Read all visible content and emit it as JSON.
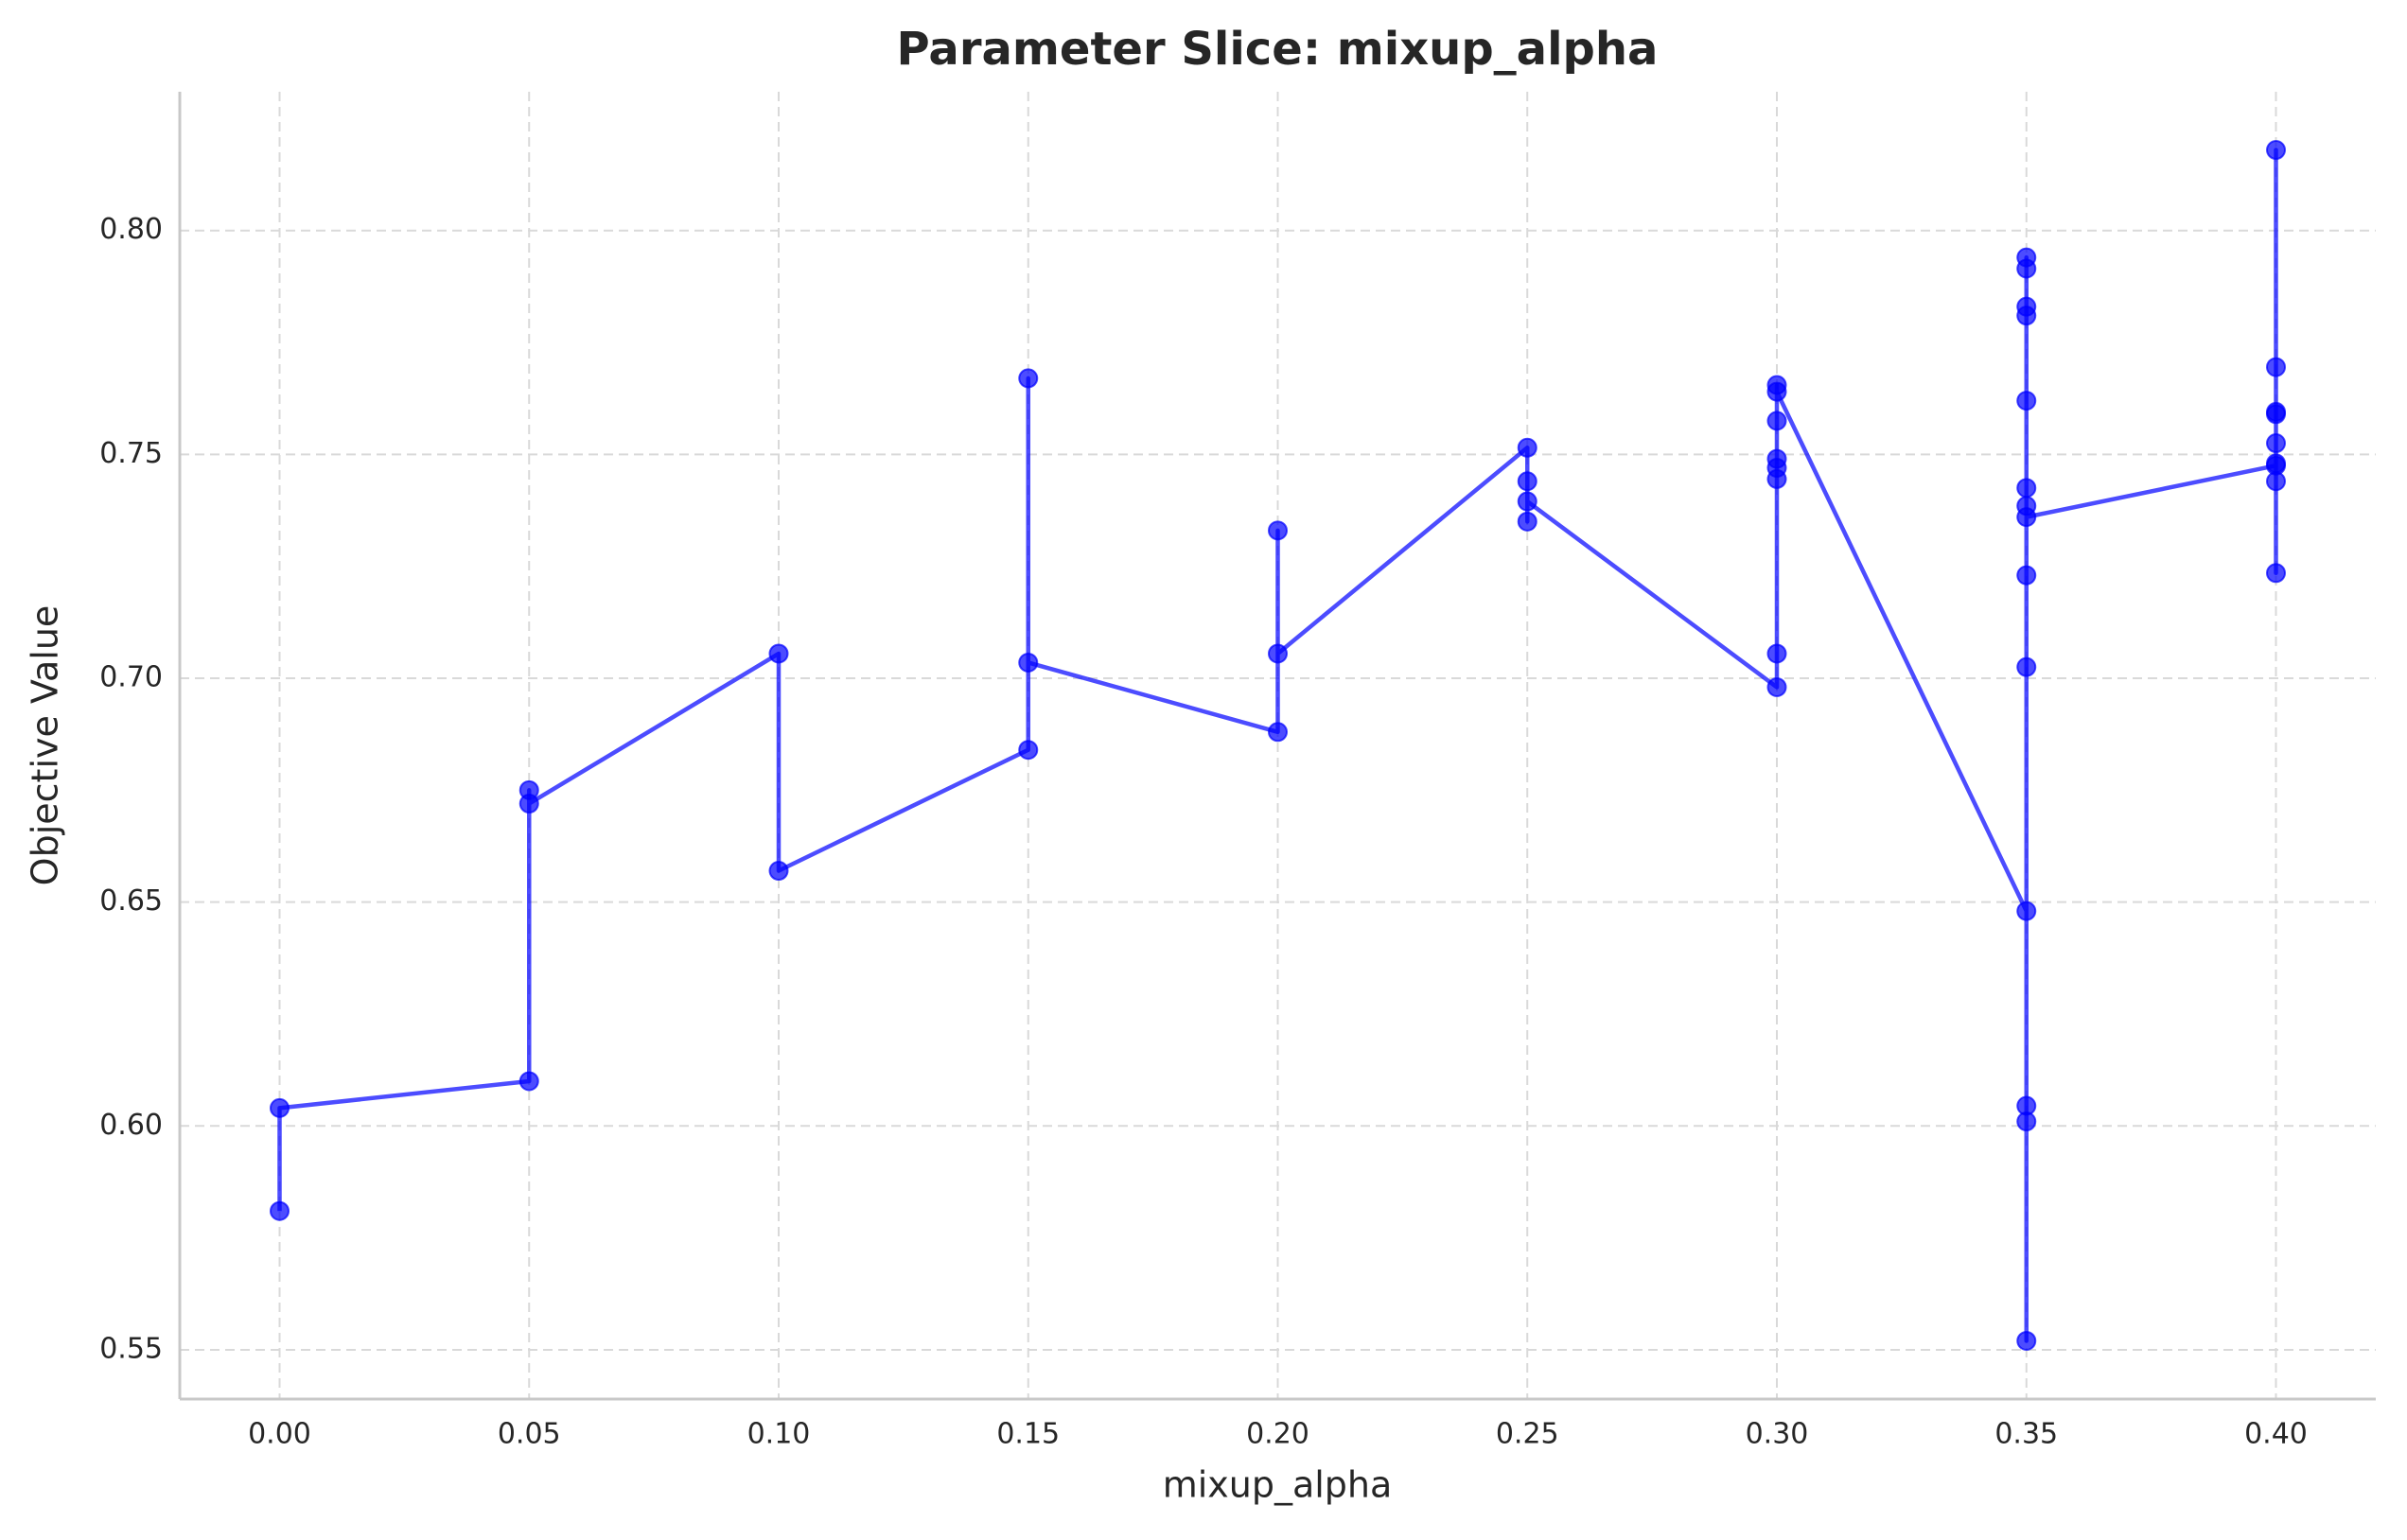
{
  "chart_data": {
    "type": "line",
    "title": "Parameter Slice: mixup_alpha",
    "x_label": "mixup_alpha",
    "y_label": "Objective Value",
    "x": [
      0,
      0,
      0.05,
      0.05,
      0.05,
      0.1,
      0.1,
      0.15,
      0.15,
      0.15,
      0.2,
      0.2,
      0.2,
      0.25,
      0.25,
      0.25,
      0.25,
      0.3,
      0.3,
      0.3,
      0.3,
      0.3,
      0.3,
      0.3,
      0.3,
      0.35,
      0.35,
      0.35,
      0.35,
      0.35,
      0.35,
      0.35,
      0.35,
      0.35,
      0.35,
      0.35,
      0.35,
      0.35,
      0.35,
      0.4,
      0.4,
      0.4,
      0.4,
      0.4,
      0.4,
      0.4,
      0.4,
      0.4
    ],
    "series": [
      {
        "name": "Objective Value",
        "color": "#0000ff",
        "values": [
          0.581,
          0.604,
          0.61,
          0.675,
          0.672,
          0.7055,
          0.657,
          0.684,
          0.767,
          0.7035,
          0.688,
          0.733,
          0.7055,
          0.7515,
          0.744,
          0.735,
          0.7395,
          0.698,
          0.7055,
          0.7445,
          0.749,
          0.747,
          0.7575,
          0.7655,
          0.764,
          0.648,
          0.552,
          0.601,
          0.6045,
          0.7025,
          0.723,
          0.762,
          0.783,
          0.794,
          0.7915,
          0.781,
          0.7425,
          0.7385,
          0.736,
          0.7475,
          0.744,
          0.7235,
          0.7525,
          0.759,
          0.818,
          0.7695,
          0.7595,
          0.748
        ]
      }
    ],
    "xlim": [
      -0.02,
      0.42
    ],
    "ylim": [
      0.539,
      0.831
    ],
    "xticks": [
      {
        "value": 0,
        "label": "0.00"
      },
      0.05,
      {
        "value": 0.1,
        "label": "0.10"
      },
      0.15,
      {
        "value": 0.2,
        "label": "0.20"
      },
      0.25,
      {
        "value": 0.3,
        "label": "0.30"
      },
      0.35,
      {
        "value": 0.4,
        "label": "0.40"
      }
    ],
    "yticks": [
      0.55,
      {
        "value": 0.6,
        "label": "0.60"
      },
      0.65,
      {
        "value": 0.7,
        "label": "0.70"
      },
      0.75,
      {
        "value": 0.8,
        "label": "0.80"
      }
    ],
    "grid": true
  }
}
